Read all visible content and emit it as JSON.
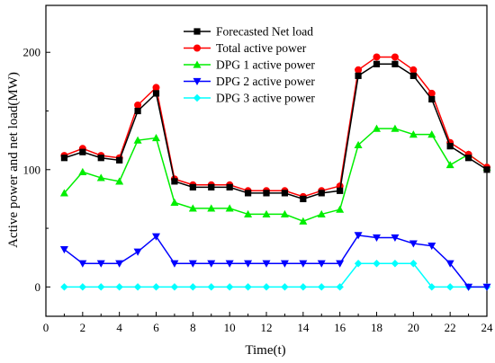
{
  "chart_data": {
    "type": "line",
    "xlabel": "Time(t)",
    "ylabel": "Active power and net load(MW)",
    "xlim": [
      0,
      24
    ],
    "ylim": [
      -25,
      240
    ],
    "xticks": [
      0,
      2,
      4,
      6,
      8,
      10,
      12,
      14,
      16,
      18,
      20,
      22,
      24
    ],
    "yticks": [
      0,
      100,
      200
    ],
    "grid": false,
    "legend_position": "top-center",
    "x": [
      1,
      2,
      3,
      4,
      5,
      6,
      7,
      8,
      9,
      10,
      11,
      12,
      13,
      14,
      15,
      16,
      17,
      18,
      19,
      20,
      21,
      22,
      23,
      24
    ],
    "series": [
      {
        "name": "Forecasted Net load",
        "color": "#000000",
        "marker": "square",
        "values": [
          110,
          115,
          110,
          108,
          150,
          165,
          90,
          85,
          85,
          85,
          80,
          80,
          80,
          75,
          80,
          82,
          180,
          190,
          190,
          180,
          160,
          120,
          110,
          100
        ]
      },
      {
        "name": "Total active power",
        "color": "#ff0000",
        "marker": "circle",
        "values": [
          112,
          118,
          112,
          110,
          155,
          170,
          92,
          87,
          87,
          87,
          82,
          82,
          82,
          77,
          82,
          86,
          185,
          196,
          196,
          185,
          165,
          123,
          113,
          102
        ]
      },
      {
        "name": "DPG 1 active power",
        "color": "#00ee00",
        "marker": "triangle-up",
        "values": [
          80,
          98,
          93,
          90,
          125,
          127,
          72,
          67,
          67,
          67,
          62,
          62,
          62,
          56,
          62,
          66,
          121,
          135,
          135,
          130,
          130,
          104,
          113,
          102
        ]
      },
      {
        "name": "DPG 2 active power",
        "color": "#0000ff",
        "marker": "triangle-down",
        "values": [
          32,
          20,
          20,
          20,
          30,
          43,
          20,
          20,
          20,
          20,
          20,
          20,
          20,
          20,
          20,
          20,
          44,
          42,
          42,
          37,
          35,
          20,
          0,
          0
        ]
      },
      {
        "name": "DPG 3 active power",
        "color": "#00ffff",
        "marker": "diamond",
        "values": [
          0,
          0,
          0,
          0,
          0,
          0,
          0,
          0,
          0,
          0,
          0,
          0,
          0,
          0,
          0,
          0,
          20,
          20,
          20,
          20,
          0,
          0,
          0,
          0
        ]
      }
    ]
  }
}
